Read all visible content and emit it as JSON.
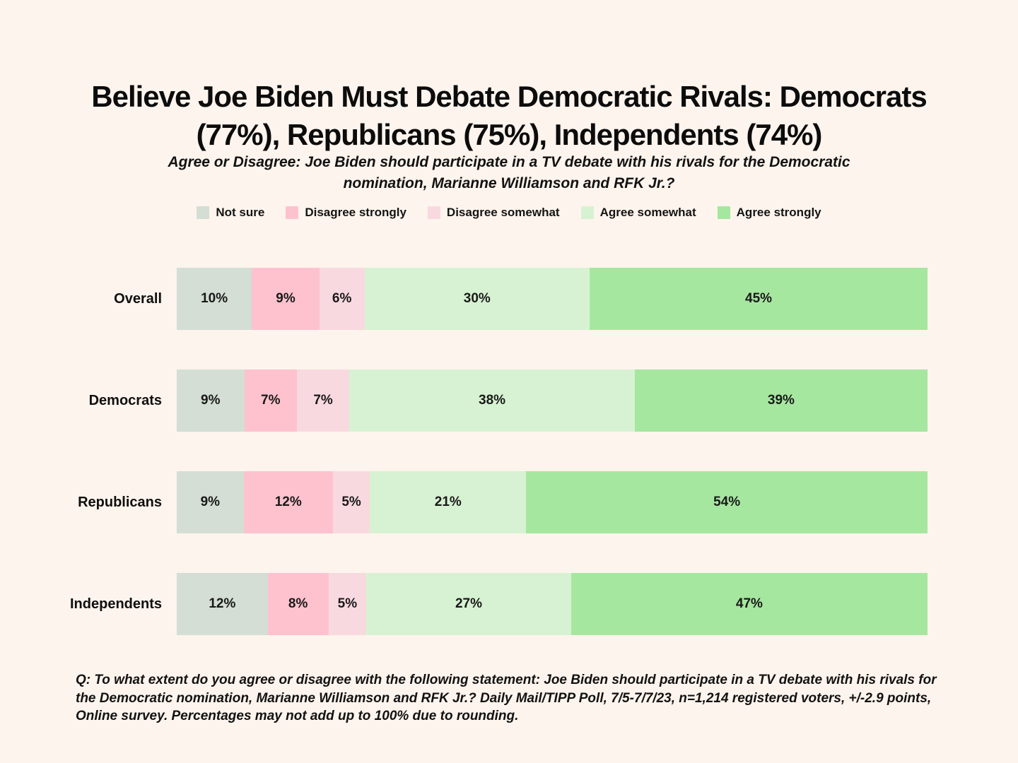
{
  "page": {
    "background_color": "#fdf4ed",
    "text_color": "#0d0d0d"
  },
  "header": {
    "title_lines": [
      "Believe Joe Biden Must Debate Democratic Rivals: Democrats",
      "(77%), Republicans (75%), Independents (74%)"
    ],
    "subtitle_lines": [
      "Agree or Disagree: Joe Biden should participate in a TV debate with his rivals for the Democratic",
      "nomination, Marianne Williamson and RFK Jr.?"
    ]
  },
  "footer": {
    "text": "Q: To what extent do you agree or disagree with the following statement: Joe Biden should participate in a TV debate with his rivals for the Democratic nomination, Marianne Williamson and RFK Jr.? Daily Mail/TIPP Poll, 7/5-7/7/23, n=1,214 registered voters, +/-2.9 points, Online survey.  Percentages may not add up to 100% due to rounding."
  },
  "chart_data": {
    "type": "bar",
    "variant": "horizontal-stacked",
    "value_format": "percent",
    "legend_position": "top",
    "title": "Believe Joe Biden Must Debate Democratic Rivals: Democrats (77%), Republicans (75%), Independents (74%)",
    "subtitle": "Agree or Disagree: Joe Biden should participate in a TV debate with his rivals for the Democratic nomination, Marianne Williamson and RFK Jr.?",
    "categories": [
      "Overall",
      "Democrats",
      "Republicans",
      "Independents"
    ],
    "series": [
      {
        "name": "Not sure",
        "color": "#d4ded4",
        "values": [
          10,
          9,
          9,
          12
        ]
      },
      {
        "name": "Disagree strongly",
        "color": "#fdc2ce",
        "values": [
          9,
          7,
          12,
          8
        ]
      },
      {
        "name": "Disagree somewhat",
        "color": "#f9d9e0",
        "values": [
          6,
          7,
          5,
          5
        ]
      },
      {
        "name": "Agree somewhat",
        "color": "#d7f2d2",
        "values": [
          30,
          38,
          21,
          27
        ]
      },
      {
        "name": "Agree strongly",
        "color": "#a6e7a0",
        "values": [
          45,
          39,
          54,
          47
        ]
      }
    ]
  }
}
